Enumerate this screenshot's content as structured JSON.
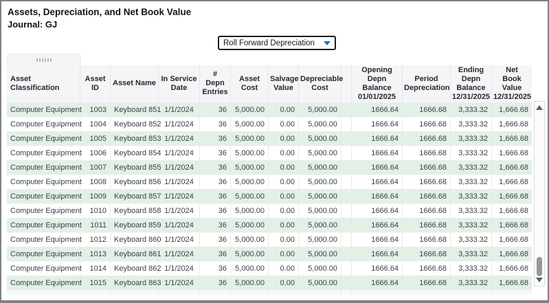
{
  "colors": {
    "accent_blue": "#2173b9",
    "row_green": "#e3f0e6",
    "header_bg": "#f4f5f7",
    "frame_border": "#7f8184"
  },
  "header": {
    "title": "Assets, Depreciation, and Net Book Value",
    "subtitle": "Journal: GJ"
  },
  "dropdown": {
    "value": "Roll Forward Depreciation"
  },
  "table": {
    "columns": [
      {
        "label": "Asset\nClassification"
      },
      {
        "label": "Asset ID"
      },
      {
        "label": "Asset Name"
      },
      {
        "label": "In Service\nDate"
      },
      {
        "label": "#\nDepn\nEntries"
      },
      {
        "label": "Asset\nCost"
      },
      {
        "label": "Salvage\nValue"
      },
      {
        "label": "Depreciable\nCost"
      },
      {
        "label": ""
      },
      {
        "label": "Opening\nDepn\nBalance\n01/01/2025"
      },
      {
        "label": "Period\nDepreciation"
      },
      {
        "label": "Ending\nDepn\nBalance\n12/31/2025"
      },
      {
        "label": "Net\nBook Value\n12/31/2025"
      }
    ],
    "rows": [
      {
        "cells": [
          "Computer Equipment",
          "1003",
          "Keyboard 851",
          "1/1/2024",
          "36",
          "5,000.00",
          "0.00",
          "5,000.00",
          "",
          "1666.64",
          "1666.68",
          "3,333.32",
          "1,666.68"
        ]
      },
      {
        "cells": [
          "Computer Equipment",
          "1004",
          "Keyboard 852",
          "1/1/2024",
          "36",
          "5,000.00",
          "0.00",
          "5,000.00",
          "",
          "1666.64",
          "1666.68",
          "3,333.32",
          "1,666.68"
        ]
      },
      {
        "cells": [
          "Computer Equipment",
          "1005",
          "Keyboard 853",
          "1/1/2024",
          "36",
          "5,000.00",
          "0.00",
          "5,000.00",
          "",
          "1666.64",
          "1666.68",
          "3,333.32",
          "1,666.68"
        ]
      },
      {
        "cells": [
          "Computer Equipment",
          "1006",
          "Keyboard 854",
          "1/1/2024",
          "36",
          "5,000.00",
          "0.00",
          "5,000.00",
          "",
          "1666.64",
          "1666.68",
          "3,333.32",
          "1,666.68"
        ]
      },
      {
        "cells": [
          "Computer Equipment",
          "1007",
          "Keyboard 855",
          "1/1/2024",
          "36",
          "5,000.00",
          "0.00",
          "5,000.00",
          "",
          "1666.64",
          "1666.68",
          "3,333.32",
          "1,666.68"
        ]
      },
      {
        "cells": [
          "Computer Equipment",
          "1008",
          "Keyboard 856",
          "1/1/2024",
          "36",
          "5,000.00",
          "0.00",
          "5,000.00",
          "",
          "1666.64",
          "1666.68",
          "3,333.32",
          "1,666.68"
        ]
      },
      {
        "cells": [
          "Computer Equipment",
          "1009",
          "Keyboard 857",
          "1/1/2024",
          "36",
          "5,000.00",
          "0.00",
          "5,000.00",
          "",
          "1666.64",
          "1666.68",
          "3,333.32",
          "1,666.68"
        ]
      },
      {
        "cells": [
          "Computer Equipment",
          "1010",
          "Keyboard 858",
          "1/1/2024",
          "36",
          "5,000.00",
          "0.00",
          "5,000.00",
          "",
          "1666.64",
          "1666.68",
          "3,333.32",
          "1,666.68"
        ]
      },
      {
        "cells": [
          "Computer Equipment",
          "1011",
          "Keyboard 859",
          "1/1/2024",
          "36",
          "5,000.00",
          "0.00",
          "5,000.00",
          "",
          "1666.64",
          "1666.68",
          "3,333.32",
          "1,666.68"
        ]
      },
      {
        "cells": [
          "Computer Equipment",
          "1012",
          "Keyboard 860",
          "1/1/2024",
          "36",
          "5,000.00",
          "0.00",
          "5,000.00",
          "",
          "1666.64",
          "1666.68",
          "3,333.32",
          "1,666.68"
        ]
      },
      {
        "cells": [
          "Computer Equipment",
          "1013",
          "Keyboard 861",
          "1/1/2024",
          "36",
          "5,000.00",
          "0.00",
          "5,000.00",
          "",
          "1666.64",
          "1666.68",
          "3,333.32",
          "1,666.68"
        ]
      },
      {
        "cells": [
          "Computer Equipment",
          "1014",
          "Keyboard 862",
          "1/1/2024",
          "36",
          "5,000.00",
          "0.00",
          "5,000.00",
          "",
          "1666.64",
          "1666.68",
          "3,333.32",
          "1,666.68"
        ]
      },
      {
        "cells": [
          "Computer Equipment",
          "1015",
          "Keyboard 863",
          "1/1/2024",
          "36",
          "5,000.00",
          "0.00",
          "5,000.00",
          "",
          "1666.64",
          "1666.68",
          "3,333.32",
          "1,666.68"
        ]
      }
    ]
  }
}
